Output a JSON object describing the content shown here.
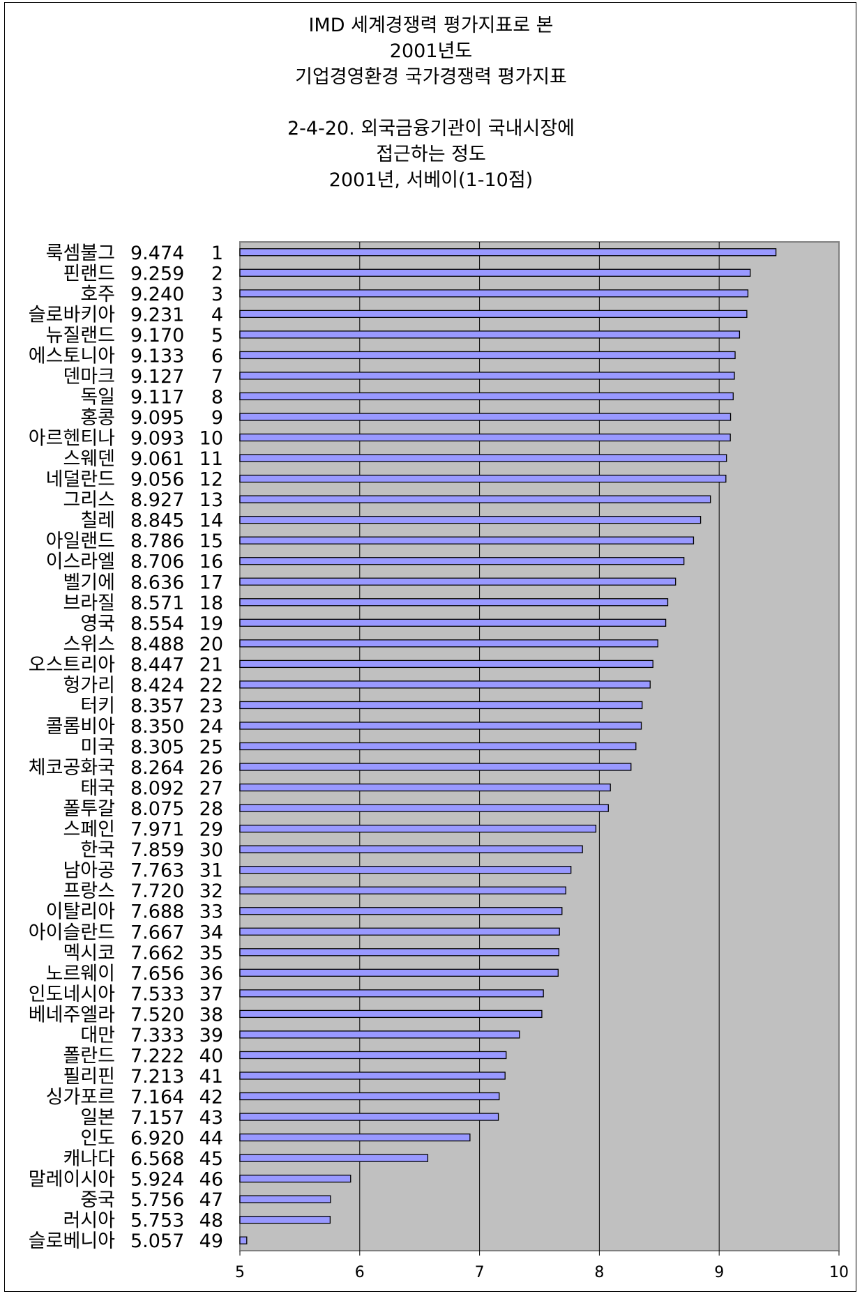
{
  "chart_data": {
    "type": "bar",
    "orientation": "horizontal",
    "title_lines": [
      "IMD 세계경쟁력 평가지표로 본",
      "2001년도",
      "기업경영환경 국가경쟁력 평가지표"
    ],
    "subtitle_lines": [
      "2-4-20. 외국금융기관이 국내시장에",
      "접근하는 정도",
      "2001년, 서베이(1-10점)"
    ],
    "xlim": [
      5,
      10
    ],
    "xticks": [
      "5",
      "6",
      "7",
      "8",
      "9",
      "10"
    ],
    "grid": "vertical",
    "plot_background": "#c0c0c0",
    "bar_color": "#9999ff",
    "bar_border": "#000000",
    "rows": [
      {
        "country": "룩셈불그",
        "value": 9.474,
        "value_label": "9.474",
        "rank": "1"
      },
      {
        "country": "핀랜드",
        "value": 9.259,
        "value_label": "9.259",
        "rank": "2"
      },
      {
        "country": "호주",
        "value": 9.24,
        "value_label": "9.240",
        "rank": "3"
      },
      {
        "country": "슬로바키아",
        "value": 9.231,
        "value_label": "9.231",
        "rank": "4"
      },
      {
        "country": "뉴질랜드",
        "value": 9.17,
        "value_label": "9.170",
        "rank": "5"
      },
      {
        "country": "에스토니아",
        "value": 9.133,
        "value_label": "9.133",
        "rank": "6"
      },
      {
        "country": "덴마크",
        "value": 9.127,
        "value_label": "9.127",
        "rank": "7"
      },
      {
        "country": "독일",
        "value": 9.117,
        "value_label": "9.117",
        "rank": "8"
      },
      {
        "country": "홍콩",
        "value": 9.095,
        "value_label": "9.095",
        "rank": "9"
      },
      {
        "country": "아르헨티나",
        "value": 9.093,
        "value_label": "9.093",
        "rank": "10"
      },
      {
        "country": "스웨덴",
        "value": 9.061,
        "value_label": "9.061",
        "rank": "11"
      },
      {
        "country": "네덜란드",
        "value": 9.056,
        "value_label": "9.056",
        "rank": "12"
      },
      {
        "country": "그리스",
        "value": 8.927,
        "value_label": "8.927",
        "rank": "13"
      },
      {
        "country": "칠레",
        "value": 8.845,
        "value_label": "8.845",
        "rank": "14"
      },
      {
        "country": "아일랜드",
        "value": 8.786,
        "value_label": "8.786",
        "rank": "15"
      },
      {
        "country": "이스라엘",
        "value": 8.706,
        "value_label": "8.706",
        "rank": "16"
      },
      {
        "country": "벨기에",
        "value": 8.636,
        "value_label": "8.636",
        "rank": "17"
      },
      {
        "country": "브라질",
        "value": 8.571,
        "value_label": "8.571",
        "rank": "18"
      },
      {
        "country": "영국",
        "value": 8.554,
        "value_label": "8.554",
        "rank": "19"
      },
      {
        "country": "스위스",
        "value": 8.488,
        "value_label": "8.488",
        "rank": "20"
      },
      {
        "country": "오스트리아",
        "value": 8.447,
        "value_label": "8.447",
        "rank": "21"
      },
      {
        "country": "헝가리",
        "value": 8.424,
        "value_label": "8.424",
        "rank": "22"
      },
      {
        "country": "터키",
        "value": 8.357,
        "value_label": "8.357",
        "rank": "23"
      },
      {
        "country": "콜롬비아",
        "value": 8.35,
        "value_label": "8.350",
        "rank": "24"
      },
      {
        "country": "미국",
        "value": 8.305,
        "value_label": "8.305",
        "rank": "25"
      },
      {
        "country": "체코공화국",
        "value": 8.264,
        "value_label": "8.264",
        "rank": "26"
      },
      {
        "country": "태국",
        "value": 8.092,
        "value_label": "8.092",
        "rank": "27"
      },
      {
        "country": "폴투갈",
        "value": 8.075,
        "value_label": "8.075",
        "rank": "28"
      },
      {
        "country": "스페인",
        "value": 7.971,
        "value_label": "7.971",
        "rank": "29"
      },
      {
        "country": "한국",
        "value": 7.859,
        "value_label": "7.859",
        "rank": "30"
      },
      {
        "country": "남아공",
        "value": 7.763,
        "value_label": "7.763",
        "rank": "31"
      },
      {
        "country": "프랑스",
        "value": 7.72,
        "value_label": "7.720",
        "rank": "32"
      },
      {
        "country": "이탈리아",
        "value": 7.688,
        "value_label": "7.688",
        "rank": "33"
      },
      {
        "country": "아이슬란드",
        "value": 7.667,
        "value_label": "7.667",
        "rank": "34"
      },
      {
        "country": "멕시코",
        "value": 7.662,
        "value_label": "7.662",
        "rank": "35"
      },
      {
        "country": "노르웨이",
        "value": 7.656,
        "value_label": "7.656",
        "rank": "36"
      },
      {
        "country": "인도네시아",
        "value": 7.533,
        "value_label": "7.533",
        "rank": "37"
      },
      {
        "country": "베네주엘라",
        "value": 7.52,
        "value_label": "7.520",
        "rank": "38"
      },
      {
        "country": "대만",
        "value": 7.333,
        "value_label": "7.333",
        "rank": "39"
      },
      {
        "country": "폴란드",
        "value": 7.222,
        "value_label": "7.222",
        "rank": "40"
      },
      {
        "country": "필리핀",
        "value": 7.213,
        "value_label": "7.213",
        "rank": "41"
      },
      {
        "country": "싱가포르",
        "value": 7.164,
        "value_label": "7.164",
        "rank": "42"
      },
      {
        "country": "일본",
        "value": 7.157,
        "value_label": "7.157",
        "rank": "43"
      },
      {
        "country": "인도",
        "value": 6.92,
        "value_label": "6.920",
        "rank": "44"
      },
      {
        "country": "캐나다",
        "value": 6.568,
        "value_label": "6.568",
        "rank": "45"
      },
      {
        "country": "말레이시아",
        "value": 5.924,
        "value_label": "5.924",
        "rank": "46"
      },
      {
        "country": "중국",
        "value": 5.756,
        "value_label": "5.756",
        "rank": "47"
      },
      {
        "country": "러시아",
        "value": 5.753,
        "value_label": "5.753",
        "rank": "48"
      },
      {
        "country": "슬로베니아",
        "value": 5.057,
        "value_label": "5.057",
        "rank": "49"
      }
    ]
  }
}
